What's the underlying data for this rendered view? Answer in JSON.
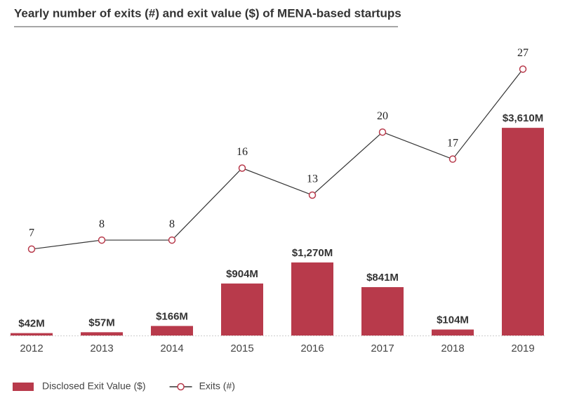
{
  "chart_data": {
    "type": "bar_line",
    "title": "Yearly number of exits (#) and exit value ($) of MENA-based startups",
    "categories": [
      "2012",
      "2013",
      "2014",
      "2015",
      "2016",
      "2017",
      "2018",
      "2019"
    ],
    "ylim": [
      0,
      5100
    ],
    "y2lim": [
      -2.6,
      30
    ],
    "series": [
      {
        "name": "Disclosed Exit Value ($)",
        "type": "bar",
        "color": "#b83a4b",
        "values": [
          42,
          57,
          166,
          904,
          1270,
          841,
          104,
          3610
        ],
        "value_labels": [
          "$42M",
          "$57M",
          "$166M",
          "$904M",
          "$1,270M",
          "$841M",
          "$104M",
          "$3,610M"
        ]
      },
      {
        "name": "Exits (#)",
        "type": "line",
        "axis": "y2",
        "color": "#b83a4b",
        "line_color": "#333333",
        "values": [
          7,
          8,
          8,
          16,
          13,
          20,
          17,
          27
        ]
      }
    ]
  }
}
